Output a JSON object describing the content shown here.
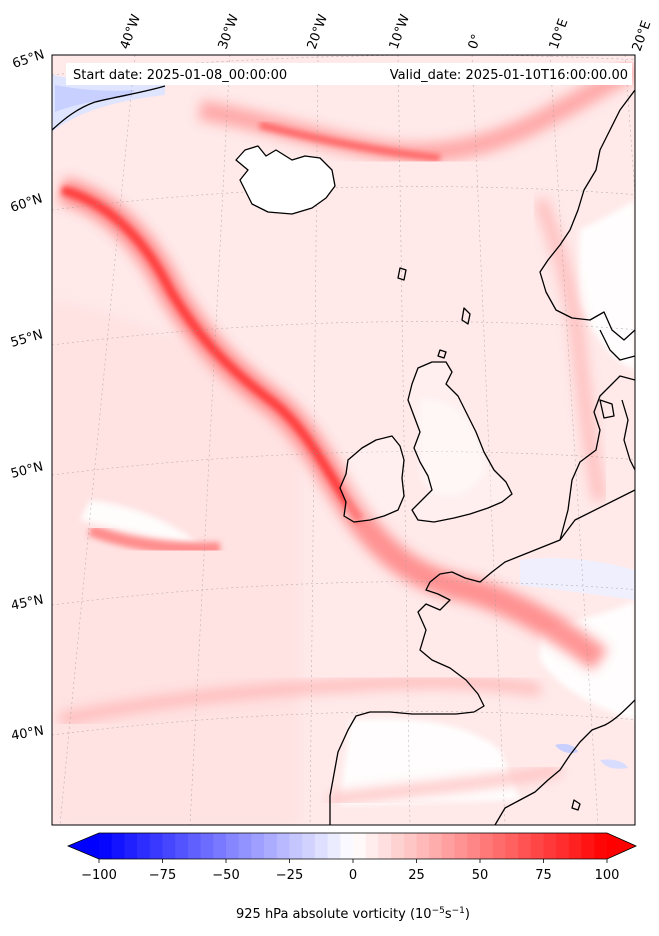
{
  "header": {
    "start_date": "Start date: 2025-01-08_00:00:00",
    "valid_date": "Valid_date: 2025-01-10T16:00:00.00"
  },
  "map": {
    "longitude_labels": [
      "40°W",
      "30°W",
      "20°W",
      "10°W",
      "0°",
      "10°E",
      "20°E"
    ],
    "latitude_labels": [
      "65°N",
      "60°N",
      "55°N",
      "50°N",
      "45°N",
      "40°N"
    ]
  },
  "colorbar": {
    "ticks": [
      "−100",
      "−75",
      "−50",
      "−25",
      "0",
      "25",
      "50",
      "75",
      "100"
    ],
    "range": [
      -100,
      100
    ],
    "step": 5,
    "colors": {
      "negative": "#0000ff",
      "zero": "#ffffff",
      "positive": "#ff0000"
    },
    "label_text": "925 hPa absolute vorticity (10",
    "label_exp1": "−5",
    "label_mid": "s",
    "label_exp2": "−1",
    "label_close": ")"
  }
}
